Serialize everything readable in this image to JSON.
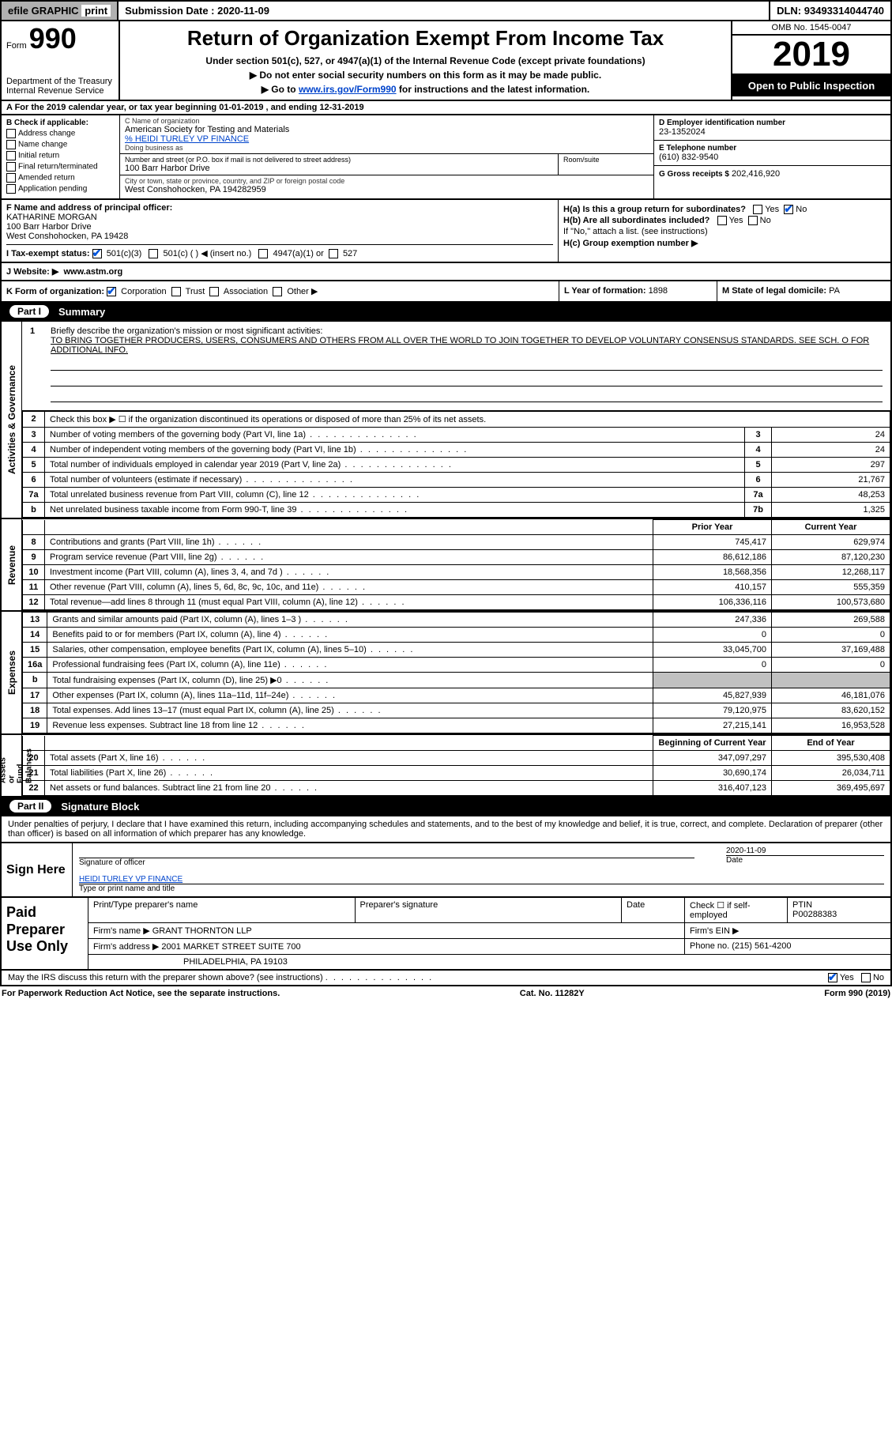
{
  "colors": {
    "header_bg": "#b0b0b0",
    "black": "#000000",
    "white": "#ffffff",
    "link": "#0044cc",
    "check": "#0055dd",
    "shade": "#c0c0c0"
  },
  "topbar": {
    "efile": "efile GRAPHIC",
    "print": "print",
    "submission_label": "Submission Date :",
    "submission_date": "2020-11-09",
    "dln_label": "DLN:",
    "dln": "93493314044740"
  },
  "form_header": {
    "form_prefix": "Form",
    "form_number": "990",
    "dept": "Department of the Treasury\nInternal Revenue Service",
    "title": "Return of Organization Exempt From Income Tax",
    "subtitle": "Under section 501(c), 527, or 4947(a)(1) of the Internal Revenue Code (except private foundations)",
    "line1": "▶ Do not enter social security numbers on this form as it may be made public.",
    "line2a": "▶ Go to ",
    "line2link": "www.irs.gov/Form990",
    "line2b": " for instructions and the latest information.",
    "omb": "OMB No. 1545-0047",
    "year": "2019",
    "inspection": "Open to Public Inspection"
  },
  "period": {
    "label_a": "A For the 2019 calendar year, or tax year beginning ",
    "begin": "01-01-2019",
    "mid": " , and ending ",
    "end": "12-31-2019"
  },
  "section_b": {
    "header": "B Check if applicable:",
    "items": [
      "Address change",
      "Name change",
      "Initial return",
      "Final return/terminated",
      "Amended return",
      "Application pending"
    ]
  },
  "section_c": {
    "name_label": "C Name of organization",
    "org_name": "American Society for Testing and Materials",
    "care_of": "% HEIDI TURLEY VP FINANCE",
    "dba_label": "Doing business as",
    "dba": "",
    "street_label": "Number and street (or P.O. box if mail is not delivered to street address)",
    "street": "100 Barr Harbor Drive",
    "room_label": "Room/suite",
    "room": "",
    "city_label": "City or town, state or province, country, and ZIP or foreign postal code",
    "city": "West Conshohocken, PA  194282959"
  },
  "section_d": {
    "label": "D Employer identification number",
    "value": "23-1352024"
  },
  "section_e": {
    "label": "E Telephone number",
    "value": "(610) 832-9540"
  },
  "section_g": {
    "label": "G Gross receipts $",
    "value": "202,416,920"
  },
  "section_f": {
    "label": "F  Name and address of principal officer:",
    "name": "KATHARINE MORGAN",
    "street": "100 Barr Harbor Drive",
    "city": "West Conshohocken, PA  19428"
  },
  "section_h": {
    "ha": "H(a)  Is this a group return for subordinates?",
    "ha_yes": "Yes",
    "ha_no": "No",
    "hb": "H(b)  Are all subordinates included?",
    "hb_yes": "Yes",
    "hb_no": "No",
    "hb_note": "If \"No,\" attach a list. (see instructions)",
    "hc": "H(c)  Group exemption number ▶"
  },
  "section_i": {
    "label": "I  Tax-exempt status:",
    "opt1": "501(c)(3)",
    "opt2": "501(c) (  ) ◀ (insert no.)",
    "opt3": "4947(a)(1) or",
    "opt4": "527"
  },
  "section_j": {
    "label": "J  Website: ▶",
    "value": "www.astm.org"
  },
  "section_k": {
    "label": "K Form of organization:",
    "opts": [
      "Corporation",
      "Trust",
      "Association",
      "Other ▶"
    ]
  },
  "section_l": {
    "label": "L Year of formation:",
    "value": "1898"
  },
  "section_m": {
    "label": "M State of legal domicile:",
    "value": "PA"
  },
  "parts": {
    "part1_label": "Part I",
    "part1_title": "Summary",
    "part2_label": "Part II",
    "part2_title": "Signature Block"
  },
  "mission": {
    "num": "1",
    "prompt": "Briefly describe the organization's mission or most significant activities:",
    "text": "TO BRING TOGETHER PRODUCERS, USERS, CONSUMERS AND OTHERS FROM ALL OVER THE WORLD TO JOIN TOGETHER TO DEVELOP VOLUNTARY CONSENSUS STANDARDS. SEE SCH. O FOR ADDITIONAL INFO."
  },
  "side_labels": {
    "activities": "Activities & Governance",
    "revenue": "Revenue",
    "expenses": "Expenses",
    "netassets": "Net Assets or\nFund Balances"
  },
  "col_headers": {
    "prior": "Prior Year",
    "current": "Current Year",
    "begin": "Beginning of Current Year",
    "end": "End of Year"
  },
  "lines_gov": [
    {
      "n": "2",
      "desc": "Check this box ▶ ☐  if the organization discontinued its operations or disposed of more than 25% of its net assets.",
      "box": "",
      "val": ""
    },
    {
      "n": "3",
      "desc": "Number of voting members of the governing body (Part VI, line 1a)",
      "box": "3",
      "val": "24"
    },
    {
      "n": "4",
      "desc": "Number of independent voting members of the governing body (Part VI, line 1b)",
      "box": "4",
      "val": "24"
    },
    {
      "n": "5",
      "desc": "Total number of individuals employed in calendar year 2019 (Part V, line 2a)",
      "box": "5",
      "val": "297"
    },
    {
      "n": "6",
      "desc": "Total number of volunteers (estimate if necessary)",
      "box": "6",
      "val": "21,767"
    },
    {
      "n": "7a",
      "desc": "Total unrelated business revenue from Part VIII, column (C), line 12",
      "box": "7a",
      "val": "48,253"
    },
    {
      "n": "b",
      "desc": "Net unrelated business taxable income from Form 990-T, line 39",
      "box": "7b",
      "val": "1,325"
    }
  ],
  "lines_rev": [
    {
      "n": "8",
      "desc": "Contributions and grants (Part VIII, line 1h)",
      "prior": "745,417",
      "curr": "629,974"
    },
    {
      "n": "9",
      "desc": "Program service revenue (Part VIII, line 2g)",
      "prior": "86,612,186",
      "curr": "87,120,230"
    },
    {
      "n": "10",
      "desc": "Investment income (Part VIII, column (A), lines 3, 4, and 7d )",
      "prior": "18,568,356",
      "curr": "12,268,117"
    },
    {
      "n": "11",
      "desc": "Other revenue (Part VIII, column (A), lines 5, 6d, 8c, 9c, 10c, and 11e)",
      "prior": "410,157",
      "curr": "555,359"
    },
    {
      "n": "12",
      "desc": "Total revenue—add lines 8 through 11 (must equal Part VIII, column (A), line 12)",
      "prior": "106,336,116",
      "curr": "100,573,680"
    }
  ],
  "lines_exp": [
    {
      "n": "13",
      "desc": "Grants and similar amounts paid (Part IX, column (A), lines 1–3 )",
      "prior": "247,336",
      "curr": "269,588"
    },
    {
      "n": "14",
      "desc": "Benefits paid to or for members (Part IX, column (A), line 4)",
      "prior": "0",
      "curr": "0"
    },
    {
      "n": "15",
      "desc": "Salaries, other compensation, employee benefits (Part IX, column (A), lines 5–10)",
      "prior": "33,045,700",
      "curr": "37,169,488"
    },
    {
      "n": "16a",
      "desc": "Professional fundraising fees (Part IX, column (A), line 11e)",
      "prior": "0",
      "curr": "0"
    },
    {
      "n": "b",
      "desc": "Total fundraising expenses (Part IX, column (D), line 25) ▶0",
      "prior": "",
      "curr": "",
      "shade": true
    },
    {
      "n": "17",
      "desc": "Other expenses (Part IX, column (A), lines 11a–11d, 11f–24e)",
      "prior": "45,827,939",
      "curr": "46,181,076"
    },
    {
      "n": "18",
      "desc": "Total expenses. Add lines 13–17 (must equal Part IX, column (A), line 25)",
      "prior": "79,120,975",
      "curr": "83,620,152"
    },
    {
      "n": "19",
      "desc": "Revenue less expenses. Subtract line 18 from line 12",
      "prior": "27,215,141",
      "curr": "16,953,528"
    }
  ],
  "lines_net": [
    {
      "n": "20",
      "desc": "Total assets (Part X, line 16)",
      "prior": "347,097,297",
      "curr": "395,530,408"
    },
    {
      "n": "21",
      "desc": "Total liabilities (Part X, line 26)",
      "prior": "30,690,174",
      "curr": "26,034,711"
    },
    {
      "n": "22",
      "desc": "Net assets or fund balances. Subtract line 21 from line 20",
      "prior": "316,407,123",
      "curr": "369,495,697"
    }
  ],
  "signature": {
    "declare": "Under penalties of perjury, I declare that I have examined this return, including accompanying schedules and statements, and to the best of my knowledge and belief, it is true, correct, and complete. Declaration of preparer (other than officer) is based on all information of which preparer has any knowledge.",
    "sign_here": "Sign Here",
    "sig_officer_label": "Signature of officer",
    "date_label": "Date",
    "sig_date": "2020-11-09",
    "officer_name": "HEIDI TURLEY  VP FINANCE",
    "officer_name_label": "Type or print name and title"
  },
  "preparer": {
    "label": "Paid Preparer Use Only",
    "row1": {
      "c1_label": "Print/Type preparer's name",
      "c2_label": "Preparer's signature",
      "c3_label": "Date",
      "c4_label": "Check ☐ if self-employed",
      "c5_label": "PTIN",
      "ptin": "P00288383"
    },
    "row2": {
      "label": "Firm's name    ▶",
      "value": "GRANT THORNTON LLP",
      "ein_label": "Firm's EIN ▶"
    },
    "row3": {
      "label": "Firm's address ▶",
      "value": "2001 MARKET STREET SUITE 700",
      "phone_label": "Phone no.",
      "phone": "(215) 561-4200"
    },
    "row3b": {
      "value": "PHILADELPHIA, PA  19103"
    }
  },
  "irs_discuss": {
    "text": "May the IRS discuss this return with the preparer shown above? (see instructions)",
    "yes": "Yes",
    "no": "No"
  },
  "footer": {
    "left": "For Paperwork Reduction Act Notice, see the separate instructions.",
    "center": "Cat. No. 11282Y",
    "right": "Form 990 (2019)"
  }
}
